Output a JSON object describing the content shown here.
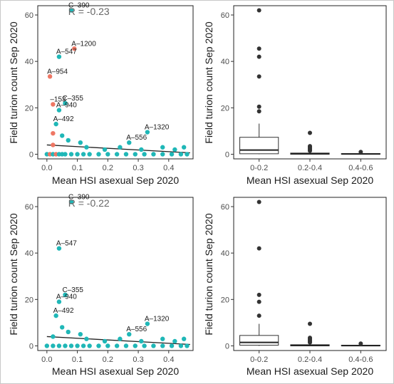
{
  "chart_data": [
    {
      "type": "scatter",
      "xlabel": "Mean HSI asexual Sep 2020",
      "ylabel": "Field turion count Sep 2020",
      "xlim": [
        -0.03,
        0.48
      ],
      "ylim": [
        -2,
        64
      ],
      "xticks": [
        0.0,
        0.1,
        0.2,
        0.3,
        0.4
      ],
      "xtick_labels": [
        "0.0",
        "0.1",
        "0.2",
        "0.3",
        "0.4"
      ],
      "yticks": [
        0,
        20,
        40,
        60
      ],
      "ytick_labels": [
        "0",
        "20",
        "40",
        "60"
      ],
      "grid": false,
      "legend": "none",
      "annotation": "R = -0.23",
      "series_colors": {
        "teal": "#1fb7b7",
        "salmon": "#ee7764"
      },
      "fit_line": {
        "x": [
          0.0,
          0.47
        ],
        "y": [
          4.0,
          0.6
        ]
      },
      "points": [
        {
          "x": 0.08,
          "y": 62,
          "c": "teal",
          "label": "C–390"
        },
        {
          "x": 0.09,
          "y": 45.5,
          "c": "salmon",
          "label": "A–1200"
        },
        {
          "x": 0.04,
          "y": 42,
          "c": "teal",
          "label": "A–547"
        },
        {
          "x": 0.01,
          "y": 33.5,
          "c": "salmon",
          "label": "A–954"
        },
        {
          "x": 0.06,
          "y": 22,
          "c": "teal",
          "label": "C–355"
        },
        {
          "x": 0.02,
          "y": 21.5,
          "c": "salmon",
          "label": "–153"
        },
        {
          "x": 0.04,
          "y": 19,
          "c": "teal",
          "label": "A–940"
        },
        {
          "x": 0.03,
          "y": 13,
          "c": "teal",
          "label": "A–492"
        },
        {
          "x": 0.33,
          "y": 9.5,
          "c": "teal",
          "label": "A–1320"
        },
        {
          "x": 0.02,
          "y": 9,
          "c": "salmon",
          "label": ""
        },
        {
          "x": 0.05,
          "y": 8,
          "c": "teal",
          "label": ""
        },
        {
          "x": 0.07,
          "y": 6,
          "c": "teal",
          "label": ""
        },
        {
          "x": 0.11,
          "y": 5,
          "c": "teal",
          "label": ""
        },
        {
          "x": 0.27,
          "y": 5,
          "c": "teal",
          "label": "A–556"
        },
        {
          "x": 0.02,
          "y": 4,
          "c": "salmon",
          "label": ""
        },
        {
          "x": 0.13,
          "y": 3,
          "c": "teal",
          "label": ""
        },
        {
          "x": 0.19,
          "y": 2,
          "c": "teal",
          "label": ""
        },
        {
          "x": 0.24,
          "y": 3,
          "c": "teal",
          "label": ""
        },
        {
          "x": 0.31,
          "y": 2,
          "c": "teal",
          "label": ""
        },
        {
          "x": 0.38,
          "y": 3,
          "c": "teal",
          "label": ""
        },
        {
          "x": 0.42,
          "y": 2,
          "c": "teal",
          "label": ""
        },
        {
          "x": 0.45,
          "y": 3,
          "c": "teal",
          "label": ""
        },
        {
          "x": 0.0,
          "y": 0,
          "c": "teal",
          "label": ""
        },
        {
          "x": 0.01,
          "y": 0,
          "c": "salmon",
          "label": ""
        },
        {
          "x": 0.02,
          "y": 0,
          "c": "teal",
          "label": ""
        },
        {
          "x": 0.03,
          "y": 0,
          "c": "salmon",
          "label": ""
        },
        {
          "x": 0.04,
          "y": 0,
          "c": "teal",
          "label": ""
        },
        {
          "x": 0.05,
          "y": 0,
          "c": "teal",
          "label": ""
        },
        {
          "x": 0.06,
          "y": 0,
          "c": "teal",
          "label": ""
        },
        {
          "x": 0.08,
          "y": 0,
          "c": "teal",
          "label": ""
        },
        {
          "x": 0.1,
          "y": 0,
          "c": "teal",
          "label": ""
        },
        {
          "x": 0.12,
          "y": 0,
          "c": "teal",
          "label": ""
        },
        {
          "x": 0.14,
          "y": 0,
          "c": "teal",
          "label": ""
        },
        {
          "x": 0.17,
          "y": 0,
          "c": "teal",
          "label": ""
        },
        {
          "x": 0.2,
          "y": 0,
          "c": "teal",
          "label": ""
        },
        {
          "x": 0.23,
          "y": 0,
          "c": "teal",
          "label": ""
        },
        {
          "x": 0.26,
          "y": 0,
          "c": "teal",
          "label": ""
        },
        {
          "x": 0.29,
          "y": 0,
          "c": "teal",
          "label": ""
        },
        {
          "x": 0.32,
          "y": 0,
          "c": "teal",
          "label": ""
        },
        {
          "x": 0.35,
          "y": 0,
          "c": "teal",
          "label": ""
        },
        {
          "x": 0.38,
          "y": 0,
          "c": "teal",
          "label": ""
        },
        {
          "x": 0.41,
          "y": 0,
          "c": "teal",
          "label": ""
        },
        {
          "x": 0.44,
          "y": 0,
          "c": "teal",
          "label": ""
        },
        {
          "x": 0.46,
          "y": 0,
          "c": "teal",
          "label": ""
        }
      ]
    },
    {
      "type": "box",
      "xlabel": "Mean HSI asexual Sep 2020",
      "ylabel": "Field turion count Sep 2020",
      "ylim": [
        -2,
        64
      ],
      "yticks": [
        0,
        20,
        40,
        60
      ],
      "ytick_labels": [
        "0",
        "20",
        "40",
        "60"
      ],
      "categories": [
        "0-0.2",
        "0.2-0.4",
        "0.4-0.6"
      ],
      "boxes": [
        {
          "q1": 0.2,
          "median": 1.8,
          "q3": 7.3,
          "lower": 0,
          "upper": 13.2,
          "outliers": [
            18.5,
            20.5,
            33.5,
            42,
            45.5,
            62
          ]
        },
        {
          "q1": 0,
          "median": 0.2,
          "q3": 0.5,
          "lower": 0,
          "upper": 1,
          "outliers": [
            1.5,
            2,
            2.5,
            3,
            3.5,
            9.2
          ]
        },
        {
          "q1": 0,
          "median": 0.1,
          "q3": 0.3,
          "lower": 0,
          "upper": 0.6,
          "outliers": [
            1
          ]
        }
      ]
    },
    {
      "type": "scatter",
      "xlabel": "Mean HSI asexual Sep 2020",
      "ylabel": "Field turion count Sep 2020",
      "xlim": [
        -0.03,
        0.48
      ],
      "ylim": [
        -2,
        64
      ],
      "xticks": [
        0.0,
        0.1,
        0.2,
        0.3,
        0.4
      ],
      "xtick_labels": [
        "0.0",
        "0.1",
        "0.2",
        "0.3",
        "0.4"
      ],
      "yticks": [
        0,
        20,
        40,
        60
      ],
      "ytick_labels": [
        "0",
        "20",
        "40",
        "60"
      ],
      "grid": false,
      "legend": "none",
      "annotation": "R = -0.22",
      "series_colors": {
        "teal": "#1fb7b7",
        "salmon": "#ee7764"
      },
      "fit_line": {
        "x": [
          0.0,
          0.47
        ],
        "y": [
          4.0,
          0.6
        ]
      },
      "points": [
        {
          "x": 0.08,
          "y": 62,
          "c": "teal",
          "label": "C–390"
        },
        {
          "x": 0.04,
          "y": 42,
          "c": "teal",
          "label": "A–547"
        },
        {
          "x": 0.06,
          "y": 22,
          "c": "teal",
          "label": "C–355"
        },
        {
          "x": 0.04,
          "y": 19,
          "c": "teal",
          "label": "A–940"
        },
        {
          "x": 0.03,
          "y": 13,
          "c": "teal",
          "label": "A–492"
        },
        {
          "x": 0.33,
          "y": 9.5,
          "c": "teal",
          "label": "A–1320"
        },
        {
          "x": 0.05,
          "y": 8,
          "c": "teal",
          "label": ""
        },
        {
          "x": 0.07,
          "y": 6,
          "c": "teal",
          "label": ""
        },
        {
          "x": 0.11,
          "y": 5,
          "c": "teal",
          "label": ""
        },
        {
          "x": 0.27,
          "y": 5,
          "c": "teal",
          "label": "A–556"
        },
        {
          "x": 0.02,
          "y": 4,
          "c": "teal",
          "label": ""
        },
        {
          "x": 0.13,
          "y": 3,
          "c": "teal",
          "label": ""
        },
        {
          "x": 0.19,
          "y": 2,
          "c": "teal",
          "label": ""
        },
        {
          "x": 0.24,
          "y": 3,
          "c": "teal",
          "label": ""
        },
        {
          "x": 0.31,
          "y": 2,
          "c": "teal",
          "label": ""
        },
        {
          "x": 0.38,
          "y": 3,
          "c": "teal",
          "label": ""
        },
        {
          "x": 0.42,
          "y": 2,
          "c": "teal",
          "label": ""
        },
        {
          "x": 0.45,
          "y": 3,
          "c": "teal",
          "label": ""
        },
        {
          "x": 0.0,
          "y": 0,
          "c": "teal",
          "label": ""
        },
        {
          "x": 0.02,
          "y": 0,
          "c": "teal",
          "label": ""
        },
        {
          "x": 0.04,
          "y": 0,
          "c": "teal",
          "label": ""
        },
        {
          "x": 0.06,
          "y": 0,
          "c": "teal",
          "label": ""
        },
        {
          "x": 0.08,
          "y": 0,
          "c": "teal",
          "label": ""
        },
        {
          "x": 0.1,
          "y": 0,
          "c": "teal",
          "label": ""
        },
        {
          "x": 0.12,
          "y": 0,
          "c": "teal",
          "label": ""
        },
        {
          "x": 0.14,
          "y": 0,
          "c": "teal",
          "label": ""
        },
        {
          "x": 0.17,
          "y": 0,
          "c": "teal",
          "label": ""
        },
        {
          "x": 0.2,
          "y": 0,
          "c": "teal",
          "label": ""
        },
        {
          "x": 0.23,
          "y": 0,
          "c": "teal",
          "label": ""
        },
        {
          "x": 0.26,
          "y": 0,
          "c": "teal",
          "label": ""
        },
        {
          "x": 0.29,
          "y": 0,
          "c": "teal",
          "label": ""
        },
        {
          "x": 0.32,
          "y": 0,
          "c": "teal",
          "label": ""
        },
        {
          "x": 0.35,
          "y": 0,
          "c": "teal",
          "label": ""
        },
        {
          "x": 0.38,
          "y": 0,
          "c": "teal",
          "label": ""
        },
        {
          "x": 0.41,
          "y": 0,
          "c": "teal",
          "label": ""
        },
        {
          "x": 0.44,
          "y": 0,
          "c": "teal",
          "label": ""
        },
        {
          "x": 0.46,
          "y": 0,
          "c": "teal",
          "label": ""
        }
      ]
    },
    {
      "type": "box",
      "xlabel": "Mean HSI asexual Sep 2020",
      "ylabel": "Field turion count Sep 2020",
      "ylim": [
        -2,
        64
      ],
      "yticks": [
        0,
        20,
        40,
        60
      ],
      "ytick_labels": [
        "0",
        "20",
        "40",
        "60"
      ],
      "categories": [
        "0-0.2",
        "0.2-0.4",
        "0.4-0.6"
      ],
      "boxes": [
        {
          "q1": 0.3,
          "median": 1.5,
          "q3": 4.5,
          "lower": 0,
          "upper": 9.5,
          "outliers": [
            13,
            19,
            22,
            42,
            62
          ]
        },
        {
          "q1": 0,
          "median": 0.2,
          "q3": 0.5,
          "lower": 0,
          "upper": 1,
          "outliers": [
            1.5,
            2,
            2.5,
            3,
            3.5,
            9.5
          ]
        },
        {
          "q1": 0,
          "median": 0.1,
          "q3": 0.3,
          "lower": 0,
          "upper": 0.6,
          "outliers": [
            1
          ]
        }
      ]
    }
  ]
}
